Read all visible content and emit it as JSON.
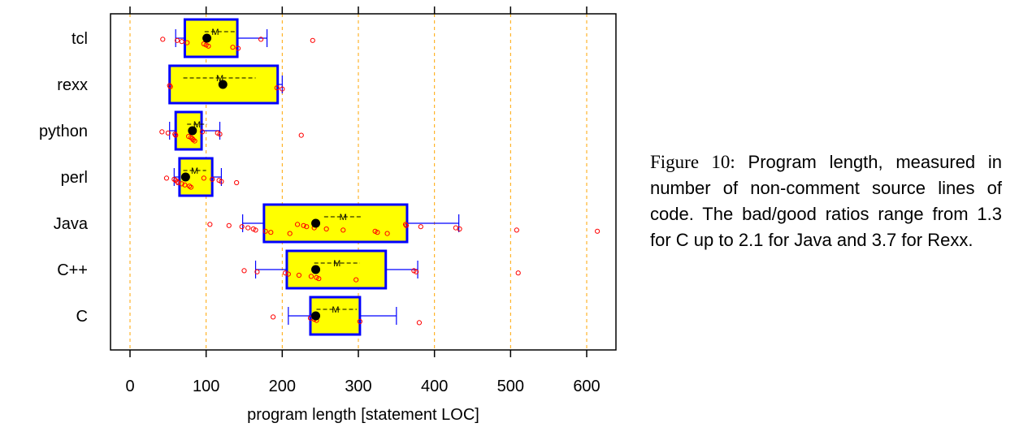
{
  "caption": {
    "prefix": "Figure 10:",
    "text": "Program length, measured in number of non-comment source lines of code. The bad/good ratios range from 1.3 for C up to 2.1 for Java and 3.7 for Rexx."
  },
  "chart_data": {
    "type": "boxplot",
    "title": "",
    "xlabel": "program length [statement LOC]",
    "ylabel": "",
    "xlim": [
      -25,
      640
    ],
    "xticks": [
      0,
      100,
      200,
      300,
      400,
      500,
      600
    ],
    "gridlines": "vertical dotted orange at x ticks",
    "box_fill": "#ffff00",
    "box_edge": "#0000ff",
    "point_color": "#ff0000",
    "median_color": "#000000",
    "mean_marker": "M",
    "categories": [
      "tcl",
      "rexx",
      "python",
      "perl",
      "Java",
      "C++",
      "C"
    ],
    "groups": [
      {
        "name": "tcl",
        "whisker_low": 60,
        "q1": 72,
        "median": 101,
        "q3": 141,
        "whisker_high": 180,
        "mean": 112,
        "mean_sd": [
          98,
          138
        ],
        "points": [
          43,
          62,
          68,
          75,
          97,
          100,
          103,
          135,
          142,
          172,
          240
        ]
      },
      {
        "name": "rexx",
        "whisker_low": 52,
        "q1": 52,
        "median": 122,
        "q3": 194,
        "whisker_high": 200,
        "mean": 118,
        "mean_sd": [
          70,
          165
        ],
        "points": [
          52,
          53,
          193,
          200
        ]
      },
      {
        "name": "python",
        "whisker_low": 52,
        "q1": 60,
        "median": 82,
        "q3": 94,
        "whisker_high": 118,
        "mean": 88,
        "mean_sd": [
          75,
          101
        ],
        "points": [
          42,
          50,
          59,
          60,
          77,
          80,
          82,
          83,
          85,
          95,
          115,
          118,
          225
        ]
      },
      {
        "name": "perl",
        "whisker_low": 58,
        "q1": 65,
        "median": 73,
        "q3": 108,
        "whisker_high": 120,
        "mean": 85,
        "mean_sd": [
          70,
          100
        ],
        "points": [
          48,
          58,
          60,
          62,
          63,
          68,
          72,
          78,
          80,
          97,
          108,
          117,
          120,
          140
        ]
      },
      {
        "name": "Java",
        "whisker_low": 148,
        "q1": 176,
        "median": 244,
        "q3": 364,
        "whisker_high": 432,
        "mean": 280,
        "mean_sd": [
          255,
          305
        ],
        "points": [
          105,
          130,
          147,
          155,
          162,
          165,
          178,
          185,
          210,
          220,
          228,
          232,
          242,
          258,
          280,
          322,
          325,
          338,
          362,
          363,
          382,
          428,
          433,
          508,
          614
        ]
      },
      {
        "name": "C++",
        "whisker_low": 165,
        "q1": 206,
        "median": 244,
        "q3": 336,
        "whisker_high": 378,
        "mean": 272,
        "mean_sd": [
          242,
          302
        ],
        "points": [
          150,
          167,
          204,
          208,
          222,
          238,
          245,
          248,
          297,
          373,
          376,
          510
        ]
      },
      {
        "name": "C",
        "whisker_low": 208,
        "q1": 237,
        "median": 244,
        "q3": 302,
        "whisker_high": 350,
        "mean": 270,
        "mean_sd": [
          245,
          298
        ],
        "points": [
          188,
          237,
          242,
          245,
          302,
          380
        ]
      }
    ]
  }
}
